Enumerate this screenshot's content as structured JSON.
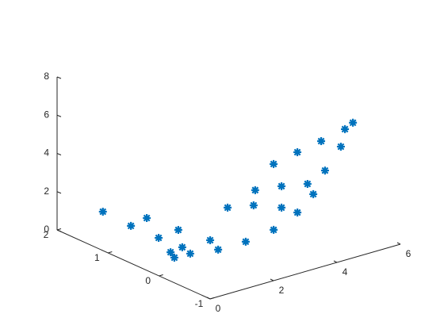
{
  "chart_data": {
    "type": "scatter3d",
    "color": "#0072bd",
    "x": [
      3.61,
      4.36,
      5.11,
      5.86,
      5.79,
      5.41,
      4.91,
      4.54,
      4.04,
      3.29,
      2.41,
      1.54,
      0.66,
      0.04,
      0.16,
      0.73,
      0.79,
      0.72,
      0.64,
      1.22,
      1.41,
      1.61,
      2.16,
      2.98,
      3.86,
      3.03,
      3.86,
      4.68
    ],
    "y": [
      0,
      0,
      0,
      0,
      -0.2,
      -0.2,
      -0.2,
      -0.2,
      -0.2,
      -0.2,
      -0.2,
      -0.2,
      -0.2,
      -0.2,
      -0.2,
      0,
      0.5,
      1,
      1.5,
      1,
      0.5,
      0,
      0,
      0,
      0,
      0,
      0,
      0
    ],
    "z": [
      4.13,
      4.39,
      4.61,
      4.88,
      5.49,
      4.42,
      3.41,
      2.35,
      1.63,
      1.08,
      0.88,
      0.88,
      1.09,
      1.46,
      1.12,
      1.15,
      1.01,
      1.07,
      1.25,
      1.24,
      1.13,
      1.1,
      2.54,
      2.27,
      1.73,
      3.04,
      2.85,
      2.58
    ],
    "xlim": [
      0,
      6
    ],
    "xticks": [
      0,
      2,
      4,
      6
    ],
    "ylim": [
      -1,
      2
    ],
    "yticks": [
      -1,
      0,
      1,
      2
    ],
    "zlim": [
      0,
      8
    ],
    "zticks": [
      0,
      2,
      4,
      6,
      8
    ]
  }
}
